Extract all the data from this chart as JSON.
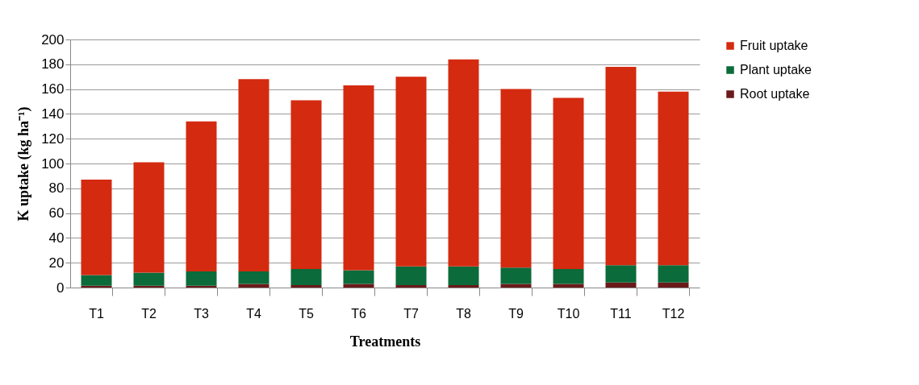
{
  "chart_data": {
    "type": "bar",
    "stacked": true,
    "xlabel": "Treatments",
    "ylabel": "K uptake (kg ha⁻¹)",
    "categories": [
      "T1",
      "T2",
      "T3",
      "T4",
      "T5",
      "T6",
      "T7",
      "T8",
      "T9",
      "T10",
      "T11",
      "T12"
    ],
    "series": [
      {
        "name": "Root uptake",
        "color": "#6b1a1a",
        "values": [
          1.5,
          1.5,
          1.5,
          3,
          2,
          3,
          2,
          2,
          3,
          3,
          4,
          4
        ]
      },
      {
        "name": "Plant uptake",
        "color": "#0b6b3a",
        "values": [
          8.5,
          10.5,
          11.5,
          10,
          13,
          11,
          15,
          15,
          13,
          12,
          14,
          14
        ]
      },
      {
        "name": "Fruit uptake",
        "color": "#d42a10",
        "values": [
          77,
          89,
          121,
          155,
          136,
          149,
          153,
          167,
          144,
          138,
          160,
          140
        ]
      }
    ],
    "ylim": [
      0,
      200
    ],
    "yticks": [
      0,
      20,
      40,
      60,
      80,
      100,
      120,
      140,
      160,
      180,
      200
    ],
    "grid": "y",
    "legend": "right"
  }
}
